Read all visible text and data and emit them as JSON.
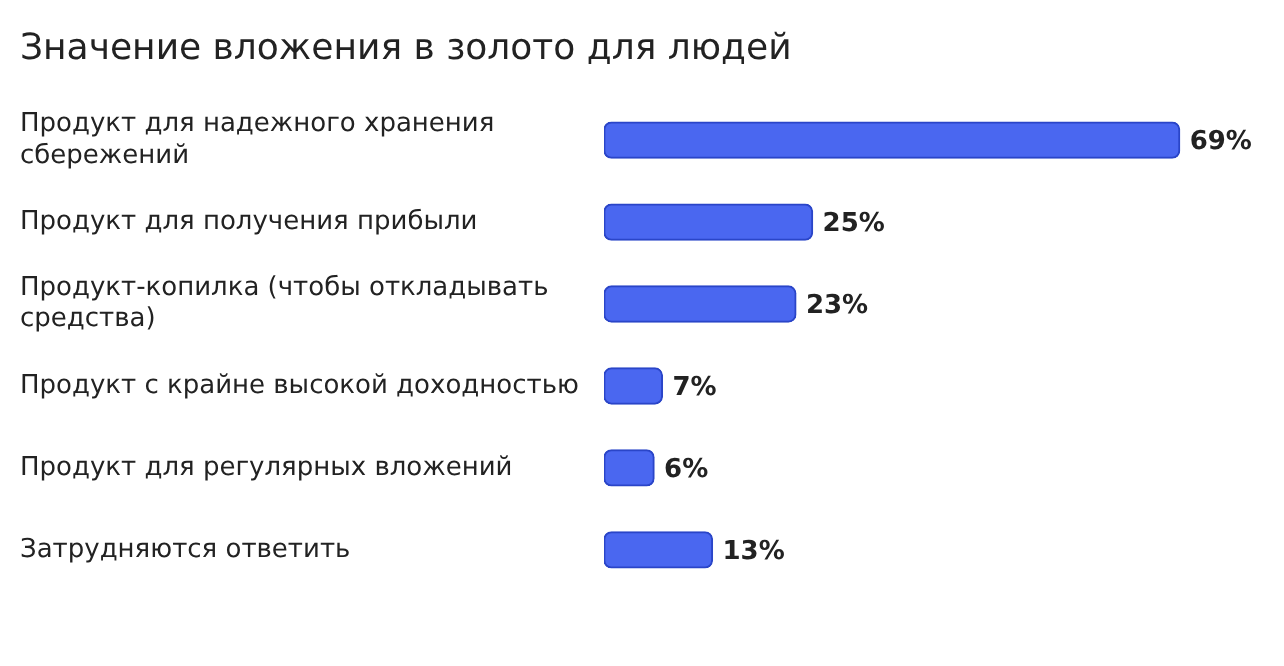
{
  "chart_data": {
    "type": "bar",
    "orientation": "horizontal",
    "title": "Значение вложения в золото для людей",
    "categories": [
      "Продукт для надежного хранения сбережений",
      "Продукт для получения прибыли",
      "Продукт-копилка (чтобы откладывать средства)",
      "Продукт с крайне высокой доходностью",
      "Продукт для регулярных вложений",
      "Затрудняются ответить"
    ],
    "values": [
      69,
      25,
      23,
      7,
      6,
      13
    ],
    "value_labels": [
      "69%",
      "25%",
      "23%",
      "7%",
      "6%",
      "13%"
    ],
    "color": "#4a67f0",
    "grid": false,
    "legend": false
  }
}
